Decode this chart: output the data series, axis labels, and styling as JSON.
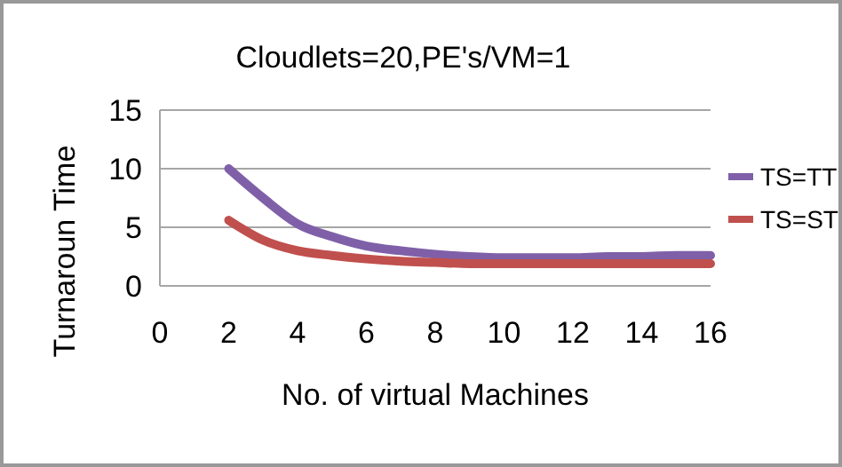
{
  "chart_data": {
    "type": "line",
    "title": "Cloudlets=20,PE's/VM=1",
    "xlabel": "No. of virtual Machines",
    "ylabel": "Turnaroun Time",
    "x": [
      2,
      3,
      4,
      5,
      6,
      7,
      8,
      9,
      10,
      11,
      12,
      13,
      14,
      15,
      16
    ],
    "series": [
      {
        "name": "TS=TT",
        "color": "#7f60a8",
        "values": [
          10,
          7.5,
          5.3,
          4.2,
          3.4,
          3,
          2.7,
          2.5,
          2.4,
          2.4,
          2.4,
          2.5,
          2.5,
          2.6,
          2.6
        ]
      },
      {
        "name": "TS=ST",
        "color": "#c0504d",
        "values": [
          5.6,
          3.9,
          3.0,
          2.6,
          2.3,
          2.1,
          2.0,
          1.9,
          1.9,
          1.9,
          1.9,
          1.9,
          1.9,
          1.9,
          1.9
        ]
      }
    ],
    "xlim": [
      0,
      16
    ],
    "xticks": [
      0,
      2,
      4,
      6,
      8,
      10,
      12,
      14,
      16
    ],
    "ylim": [
      0,
      15
    ],
    "yticks": [
      0,
      5,
      10,
      15
    ],
    "grid": "y",
    "legend": "right",
    "marker": "none",
    "line_style": "solid"
  }
}
